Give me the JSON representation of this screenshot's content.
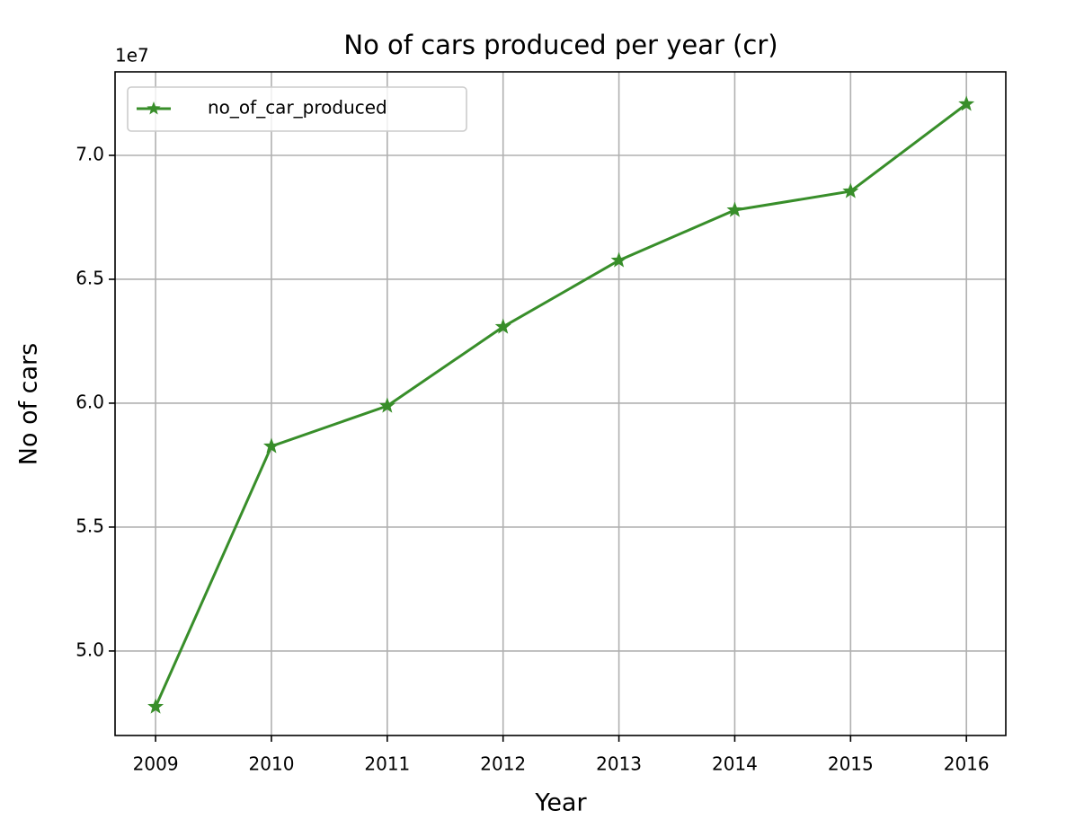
{
  "chart_data": {
    "type": "line",
    "title": "No of cars produced per year (cr)",
    "x_label": "Year",
    "y_label": "No of cars",
    "y_offset_text": "1e7",
    "x": [
      2009,
      2010,
      2011,
      2012,
      2013,
      2014,
      2015,
      2016
    ],
    "series": [
      {
        "name": "no_of_car_produced",
        "color": "#388e2a",
        "marker": "star",
        "values": [
          47750000,
          58260000,
          59890000,
          63080000,
          65760000,
          67790000,
          68550000,
          72070000
        ]
      }
    ],
    "xlim": [
      2008.65,
      2016.34
    ],
    "xticks": [
      2009,
      2010,
      2011,
      2012,
      2013,
      2014,
      2015,
      2016
    ],
    "ylim": [
      46590000,
      73370000
    ],
    "yticks": [
      {
        "value": 50000000,
        "label": "5.0"
      },
      {
        "value": 55000000,
        "label": "5.5"
      },
      {
        "value": 60000000,
        "label": "6.0"
      },
      {
        "value": 65000000,
        "label": "6.5"
      },
      {
        "value": 70000000,
        "label": "7.0"
      }
    ],
    "grid": true,
    "legend": "upper left"
  }
}
